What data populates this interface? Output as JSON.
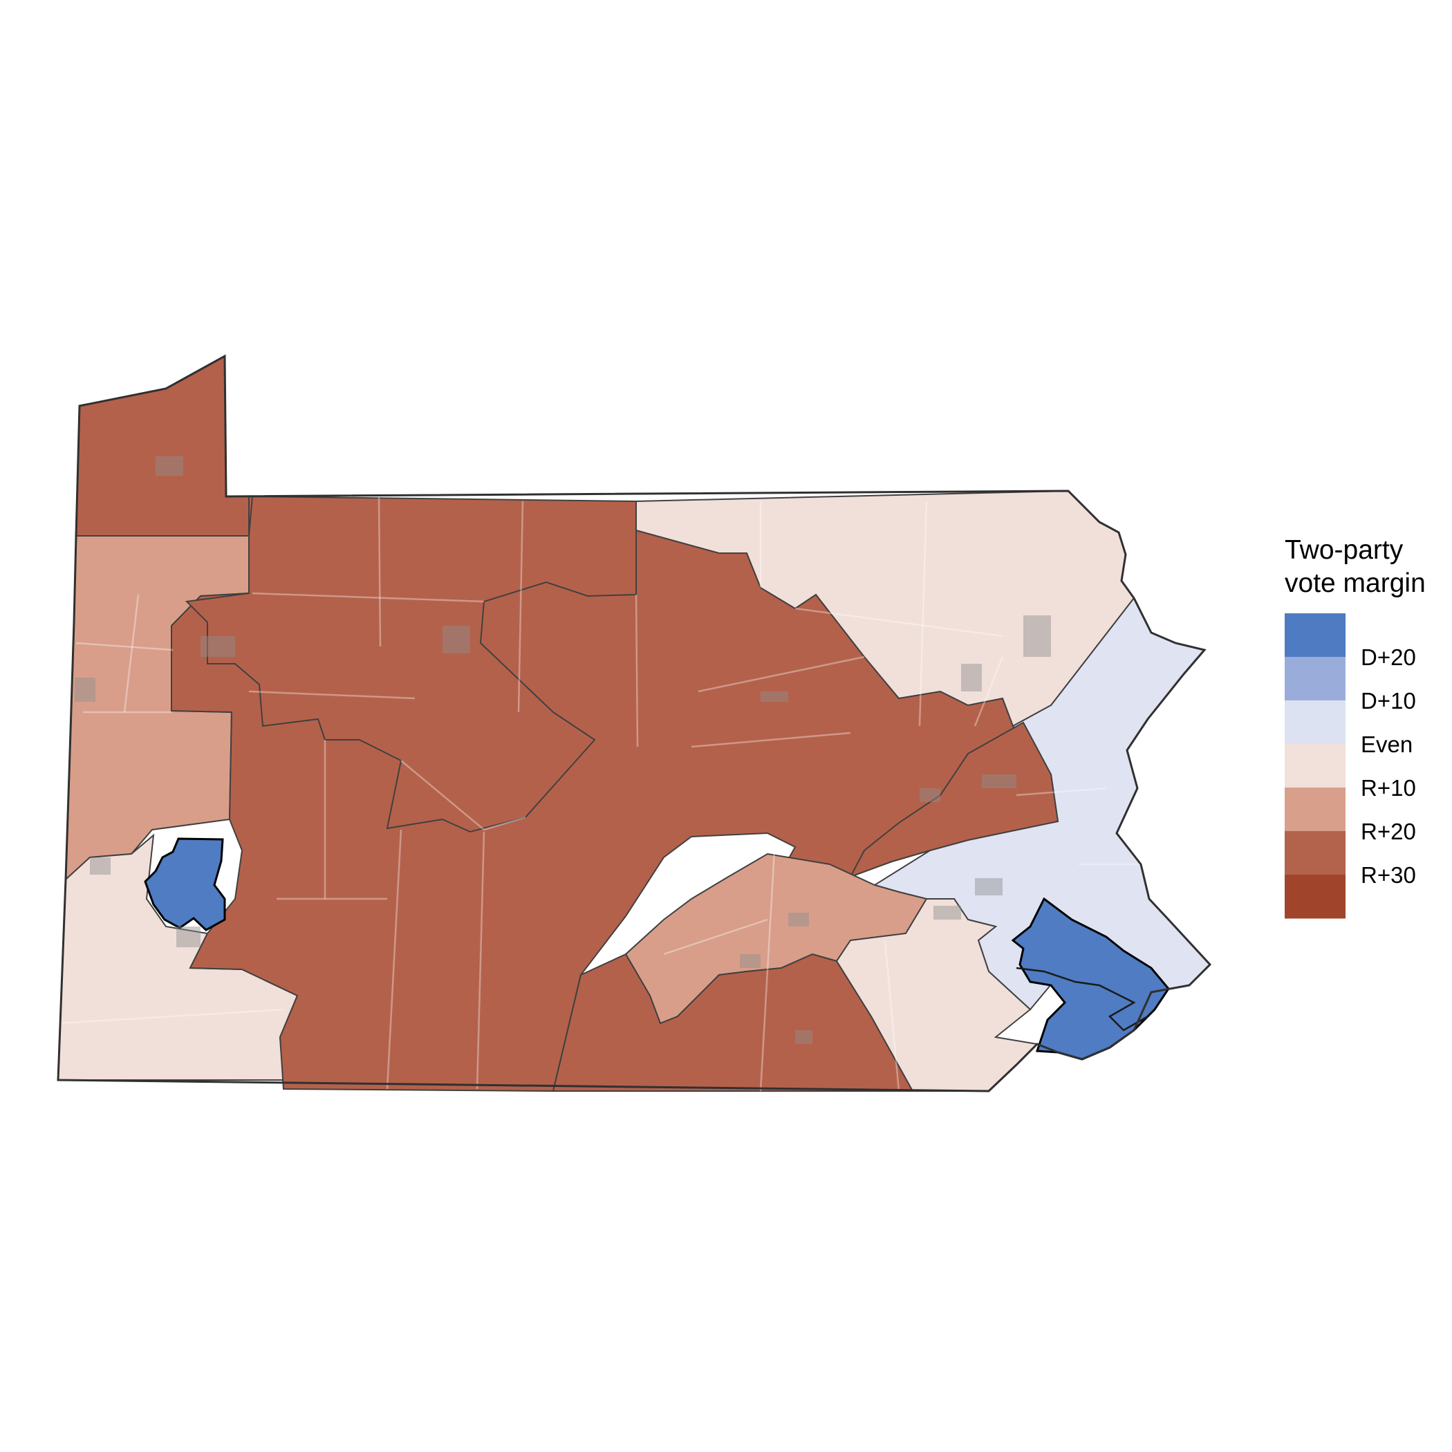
{
  "map": {
    "region": "Pennsylvania",
    "colors": {
      "strong_rep": "#b4614b",
      "lean_rep": "#d89e8a",
      "tilt_rep": "#f1dfd9",
      "tilt_dem": "#dfe3f2",
      "strong_dem": "#4f7cc2",
      "urban_overlay": "#8e8e8e",
      "district_boundary": "#303030",
      "state_border": "#303030",
      "county_lines": "#ffffff"
    }
  },
  "legend": {
    "title_line1": "Two-party",
    "title_line2": "vote margin",
    "bins": [
      {
        "color": "#4e7bc2",
        "label": "D+20"
      },
      {
        "color": "#9aadda",
        "label": "D+10"
      },
      {
        "color": "#dde2f2",
        "label": "Even"
      },
      {
        "color": "#f2e0db",
        "label": "R+10"
      },
      {
        "color": "#d89f8b",
        "label": "R+20"
      },
      {
        "color": "#b3624b",
        "label": "R+30"
      },
      {
        "color": "#a0452c",
        "label": ""
      }
    ]
  }
}
